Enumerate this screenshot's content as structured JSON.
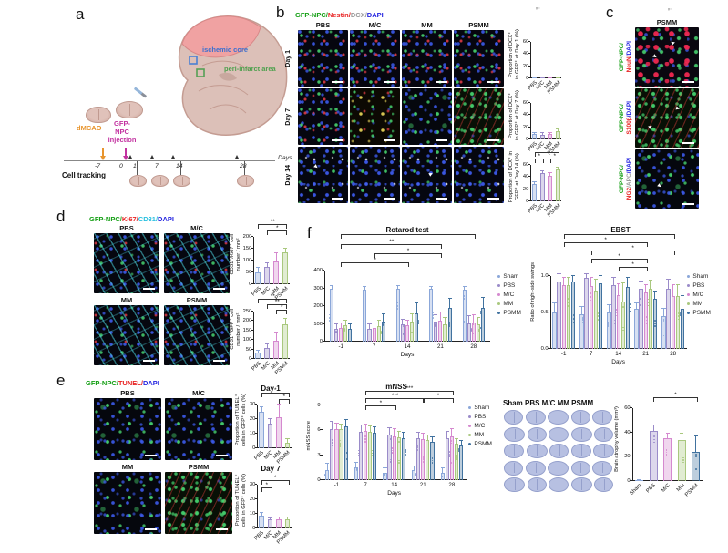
{
  "palette": [
    "#8ba7d9",
    "#9a8bc9",
    "#d589cf",
    "#a9c87e",
    "#41729f"
  ],
  "legend_groups": [
    {
      "label": "Sham"
    },
    {
      "label": "PBS"
    },
    {
      "label": "M/C"
    },
    {
      "label": "MM"
    },
    {
      "label": "PSMM"
    }
  ],
  "panel_a": {
    "label": "a",
    "ischemic_core": "ischemic core",
    "peri_infarct": "peri-infarct area",
    "dmcao": "dMCAO",
    "injection": "GFP-\nNPC\ninjection",
    "cell_tracking": "Cell tracking",
    "days_label": "Days",
    "ticks": [
      "-7",
      "0",
      "1",
      "7",
      "14",
      "28"
    ]
  },
  "panel_b": {
    "label": "b",
    "mark": "ᵛ⁻",
    "title": {
      "gfp": "GFP-NPC/",
      "nestin": "Nestin/",
      "dcx": "DCX/",
      "dapi": "DAPI"
    },
    "columns": [
      "PBS",
      "M/C",
      "MM",
      "PSMM"
    ],
    "rows": [
      "Day 1",
      "Day 7",
      "Day 14"
    ]
  },
  "panel_c": {
    "label": "c",
    "mark": "ᵛ⁻",
    "header": "PSMM",
    "rows": [
      {
        "l1": "GFP-NPC/",
        "l2a": "NeuN",
        "l2b": "/DAPI"
      },
      {
        "l1": "GFP-NPC/",
        "l2a": "S100β",
        "l2b": "/DAPI"
      },
      {
        "l1": "GFP-NPC/",
        "l2a": "NG2",
        "l2mid": "/APC",
        "l2b": "/DAPI"
      }
    ]
  },
  "panel_d": {
    "label": "d",
    "title": {
      "gfp": "GFP-NPC/",
      "ki67": "Ki67/",
      "cd31": "CD31/",
      "dapi": "DAPI"
    },
    "columns": [
      "PBS",
      "M/C",
      "MM",
      "PSMM"
    ]
  },
  "panel_e": {
    "label": "e",
    "title": {
      "gfp": "GFP-NPC/",
      "tunel": "TUNEL/",
      "dapi": "DAPI"
    },
    "columns": [
      "PBS",
      "M/C",
      "MM",
      "PSMM"
    ]
  },
  "panel_f": {
    "label": "f",
    "sections_header": "Sham PBS M/C MM PSMM"
  },
  "chart_data": [
    {
      "id": "dcx-day1",
      "type": "bar",
      "ylabel": [
        "Proportion of DCX⁺",
        "in GFP⁺ at Day 1 (%)"
      ],
      "categories": [
        "PBS",
        "M/C",
        "MM",
        "PSMM"
      ],
      "values": [
        0.6,
        0.5,
        0.8,
        0.7
      ],
      "errors": [
        0.4,
        0.3,
        0.5,
        0.5
      ],
      "ylim": [
        0,
        60
      ],
      "yticks": [
        0,
        20,
        40,
        60
      ],
      "pw": 34,
      "ph": 40,
      "top": 13,
      "yw": 10,
      "sig": []
    },
    {
      "id": "dcx-day7",
      "type": "bar",
      "ylabel": [
        "Proportion of DCX⁺",
        "in GFP⁺ at Day 7 (%)"
      ],
      "categories": [
        "PBS",
        "M/C",
        "MM",
        "PSMM"
      ],
      "values": [
        9,
        8,
        9,
        13
      ],
      "errors": [
        2,
        2,
        2,
        4
      ],
      "ylim": [
        0,
        60
      ],
      "yticks": [
        0,
        20,
        40,
        60
      ],
      "pw": 34,
      "ph": 40,
      "top": 13,
      "yw": 10,
      "sig": []
    },
    {
      "id": "dcx-day14",
      "type": "bar",
      "ylabel": [
        "Proportion of DCX⁺ in",
        "GFP⁺ at Day 14 (%)"
      ],
      "categories": [
        "PBS",
        "M/C",
        "MM",
        "PSMM"
      ],
      "values": [
        28,
        46,
        42,
        52
      ],
      "errors": [
        4,
        3,
        4,
        3
      ],
      "ylim": [
        0,
        60
      ],
      "yticks": [
        0,
        20,
        40,
        60
      ],
      "pw": 34,
      "ph": 40,
      "top": 14,
      "yw": 10,
      "sig": [
        {
          "a": 0,
          "b": 3,
          "y": 0,
          "t": "**"
        },
        {
          "a": 0,
          "b": 1,
          "y": 7,
          "t": "*"
        },
        {
          "a": 2,
          "b": 3,
          "y": 7,
          "t": "*"
        }
      ]
    },
    {
      "id": "cd31-ki67",
      "type": "bar",
      "ylabel": [
        "CD31⁺/Ki67⁺ cell",
        "number / mm²"
      ],
      "categories": [
        "PBS",
        "M/C",
        "MM",
        "PSMM"
      ],
      "values": [
        50,
        75,
        95,
        135
      ],
      "errors": [
        20,
        12,
        35,
        15
      ],
      "ylim": [
        0,
        200
      ],
      "yticks": [
        0,
        50,
        100,
        150,
        200
      ],
      "pw": 40,
      "ph": 52,
      "top": 14,
      "yw": 12,
      "sig": [
        {
          "a": 0,
          "b": 3,
          "y": 0,
          "t": "**"
        },
        {
          "a": 1,
          "b": 3,
          "y": 7,
          "t": "*"
        }
      ]
    },
    {
      "id": "cd31-gfp",
      "type": "bar",
      "ylabel": [
        "CD31⁺/GFP⁺ cell",
        "number / mm²"
      ],
      "categories": [
        "PBS",
        "M/C",
        "MM",
        "PSMM"
      ],
      "values": [
        35,
        60,
        95,
        185
      ],
      "errors": [
        10,
        15,
        45,
        25
      ],
      "ylim": [
        0,
        250
      ],
      "yticks": [
        0,
        50,
        100,
        150,
        200,
        250
      ],
      "pw": 40,
      "ph": 52,
      "top": 14,
      "yw": 12,
      "sig": [
        {
          "a": 0,
          "b": 3,
          "y": 0,
          "t": "**"
        },
        {
          "a": 1,
          "b": 3,
          "y": 6,
          "t": "**"
        },
        {
          "a": 2,
          "b": 3,
          "y": 12,
          "t": "*"
        }
      ]
    },
    {
      "id": "tunel-day1",
      "type": "bar",
      "title": "Day 1",
      "ylabel": [
        "Proportion of TUNEL⁺",
        "cells in GFP⁺ cells (%)"
      ],
      "categories": [
        "PBS",
        "M/C",
        "MM",
        "PSMM"
      ],
      "values": [
        25,
        17,
        21,
        4
      ],
      "errors": [
        3,
        3,
        9,
        2
      ],
      "ylim": [
        0,
        30
      ],
      "yticks": [
        0,
        10,
        20,
        30
      ],
      "pw": 38,
      "ph": 48,
      "top": 13,
      "yw": 10,
      "sig": [
        {
          "a": 0,
          "b": 3,
          "y": 0,
          "t": "*"
        },
        {
          "a": 2,
          "b": 3,
          "y": 7,
          "t": "*"
        }
      ]
    },
    {
      "id": "tunel-day7",
      "type": "bar",
      "title": "Day 7",
      "ylabel": [
        "Proportion of TUNEL⁺",
        "cells in GFP⁺ cells (%)"
      ],
      "categories": [
        "PBS",
        "M/C",
        "MM",
        "PSMM"
      ],
      "values": [
        9,
        6,
        6.5,
        6
      ],
      "errors": [
        1.5,
        1,
        1,
        1.5
      ],
      "ylim": [
        0,
        30
      ],
      "yticks": [
        0,
        10,
        20,
        30
      ],
      "pw": 38,
      "ph": 48,
      "top": 13,
      "yw": 10,
      "sig": [
        {
          "a": 0,
          "b": 3,
          "y": 8,
          "t": "*"
        },
        {
          "a": 0,
          "b": 1,
          "y": 16,
          "t": "*"
        }
      ]
    },
    {
      "id": "rotarod",
      "type": "grouped",
      "title": "Rotarod test",
      "ylabel": [],
      "x": [
        "-1",
        "7",
        "14",
        "21",
        "28"
      ],
      "xlabel": "Days",
      "ylim": [
        0,
        400
      ],
      "yticks": [
        0,
        100,
        200,
        300,
        400
      ],
      "pw": 182,
      "ph": 78,
      "top": 40,
      "yw": 16,
      "dots": true,
      "series": [
        {
          "name": "Sham",
          "values": [
            300,
            290,
            300,
            295,
            290
          ],
          "errors": [
            15,
            20,
            15,
            15,
            20
          ]
        },
        {
          "name": "PBS",
          "values": [
            70,
            70,
            95,
            115,
            105
          ],
          "errors": [
            25,
            25,
            30,
            35,
            40
          ]
        },
        {
          "name": "M/C",
          "values": [
            75,
            75,
            90,
            120,
            110
          ],
          "errors": [
            30,
            30,
            30,
            45,
            40
          ]
        },
        {
          "name": "MM",
          "values": [
            90,
            85,
            115,
            100,
            100
          ],
          "errors": [
            30,
            35,
            40,
            35,
            35
          ]
        },
        {
          "name": "PSMM",
          "values": [
            70,
            115,
            160,
            190,
            190
          ],
          "errors": [
            25,
            40,
            55,
            50,
            55
          ]
        }
      ],
      "sig": [
        {
          "a": 0,
          "b": 4,
          "y": 0,
          "t": "*"
        },
        {
          "a": 0,
          "b": 3,
          "y": 11,
          "t": "**"
        },
        {
          "a": 1,
          "b": 3,
          "y": 21,
          "t": "*"
        },
        {
          "a": 0,
          "b": 2,
          "y": 31,
          "t": "*"
        }
      ]
    },
    {
      "id": "ebst",
      "type": "grouped",
      "title": "EBST",
      "ylabel": [
        "Ratio of right-side swings"
      ],
      "x": [
        "-1",
        "7",
        "14",
        "21",
        "28"
      ],
      "xlabel": "Days",
      "ylim": [
        0,
        1
      ],
      "yticks": [
        [
          0,
          "0.0"
        ],
        [
          0.5,
          "0.5"
        ],
        [
          1,
          "1.0"
        ]
      ],
      "pw": 150,
      "ph": 80,
      "top": 46,
      "yw": 14,
      "dots": true,
      "series": [
        {
          "name": "Sham",
          "values": [
            0.5,
            0.47,
            0.5,
            0.55,
            0.45
          ],
          "errors": [
            0.12,
            0.1,
            0.1,
            0.08,
            0.1
          ]
        },
        {
          "name": "PBS",
          "values": [
            0.92,
            0.97,
            0.88,
            0.83,
            0.83
          ],
          "errors": [
            0.1,
            0.05,
            0.1,
            0.1,
            0.12
          ]
        },
        {
          "name": "M/C",
          "values": [
            0.88,
            0.86,
            0.74,
            0.78,
            0.72
          ],
          "errors": [
            0.1,
            0.12,
            0.15,
            0.1,
            0.15
          ]
        },
        {
          "name": "MM",
          "values": [
            0.88,
            0.8,
            0.65,
            0.82,
            0.73
          ],
          "errors": [
            0.1,
            0.15,
            0.25,
            0.12,
            0.15
          ]
        },
        {
          "name": "PSMM",
          "values": [
            0.92,
            0.9,
            0.85,
            0.69,
            0.55
          ],
          "errors": [
            0.08,
            0.1,
            0.12,
            0.1,
            0.18
          ]
        }
      ],
      "sig": [
        {
          "a": 0,
          "b": 4,
          "y": 0,
          "t": "*"
        },
        {
          "a": 0,
          "b": 3,
          "y": 9,
          "t": "*"
        },
        {
          "a": 1,
          "b": 4,
          "y": 18,
          "t": "*"
        },
        {
          "a": 1,
          "b": 3,
          "y": 27,
          "t": "*"
        },
        {
          "a": 2,
          "b": 3,
          "y": 36,
          "t": "*"
        }
      ]
    },
    {
      "id": "mnss",
      "type": "grouped",
      "title": "mNSS",
      "ylabel": [
        "mNSS score"
      ],
      "x": [
        "-1",
        "7",
        "14",
        "21",
        "28"
      ],
      "xlabel": "Days",
      "ylim": [
        0,
        9
      ],
      "yticks": [
        0,
        3,
        6,
        9
      ],
      "pw": 158,
      "ph": 82,
      "top": 16,
      "yw": 10,
      "dots": true,
      "series": [
        {
          "name": "Sham",
          "values": [
            1.2,
            1.5,
            0.9,
            1.2,
            0.9
          ],
          "errors": [
            0.8,
            0.6,
            0.5,
            0.5,
            0.5
          ]
        },
        {
          "name": "PBS",
          "values": [
            6.2,
            5.8,
            5.5,
            5.0,
            5.0
          ],
          "errors": [
            0.8,
            0.8,
            0.8,
            0.7,
            0.8
          ]
        },
        {
          "name": "M/C",
          "values": [
            6.1,
            5.9,
            5.3,
            4.9,
            5.3
          ],
          "errors": [
            0.7,
            0.8,
            0.8,
            0.7,
            0.8
          ]
        },
        {
          "name": "MM",
          "values": [
            6.1,
            5.8,
            5.2,
            4.8,
            4.4
          ],
          "errors": [
            0.6,
            0.7,
            0.6,
            0.6,
            0.5
          ]
        },
        {
          "name": "PSMM",
          "values": [
            6.5,
            5.7,
            5.0,
            4.6,
            4.2
          ],
          "errors": [
            0.8,
            0.7,
            0.7,
            0.6,
            0.5
          ]
        }
      ],
      "sig": [
        {
          "a": 1,
          "b": 4,
          "y": 0,
          "t": "***"
        },
        {
          "a": 1,
          "b": 3,
          "y": 8,
          "t": "***"
        },
        {
          "a": 1,
          "b": 2,
          "y": 16,
          "t": "*"
        },
        {
          "a": 3,
          "b": 4,
          "y": 8,
          "t": "*"
        }
      ]
    },
    {
      "id": "atrophy",
      "type": "bar",
      "ylabel": [
        "Brain atrophy volume (mm³)"
      ],
      "categories": [
        "Sham",
        "PBS",
        "M/C",
        "MM",
        "PSMM"
      ],
      "values": [
        0.5,
        41,
        35,
        34,
        24
      ],
      "errors": [
        0.4,
        5,
        4,
        5,
        13
      ],
      "ylim": [
        0,
        60
      ],
      "yticks": [
        0,
        20,
        40,
        60
      ],
      "pw": 78,
      "ph": 80,
      "top": 12,
      "yw": 12,
      "dots": true,
      "sig": [
        {
          "a": 1,
          "b": 4,
          "y": 0,
          "t": "*"
        }
      ]
    }
  ]
}
